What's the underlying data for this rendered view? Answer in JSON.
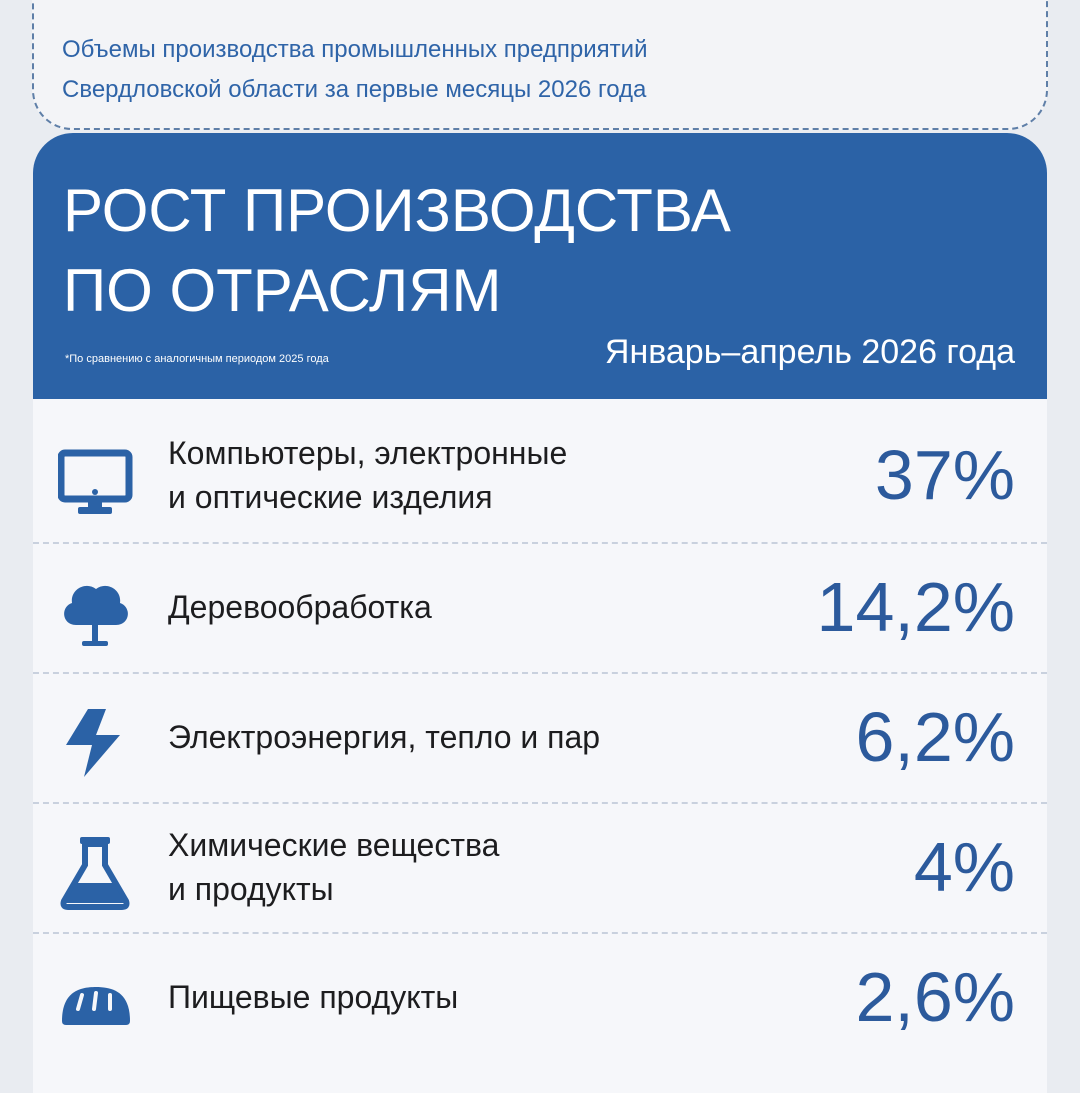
{
  "header": {
    "caption": [
      "Объемы производства промышленных предприятий",
      "Свердловской области за первые месяцы 2026 года"
    ]
  },
  "card": {
    "title": [
      "РОСТ ПРОИЗВОДСТВА",
      "ПО ОТРАСЛЯМ"
    ],
    "footnote": "*По сравнению с аналогичным периодом 2025 года",
    "period": "Январь–апрель 2026 года",
    "items": [
      {
        "label": [
          "Компьютеры, электронные",
          "и оптические изделия"
        ],
        "value": "37%"
      },
      {
        "label": [
          "Деревообработка"
        ],
        "value": "14,2%"
      },
      {
        "label": [
          "Электроэнергия, тепло и пар"
        ],
        "value": "6,2%"
      },
      {
        "label": [
          "Химические вещества",
          "и продукты"
        ],
        "value": "4%"
      },
      {
        "label": [
          "Пищевые продукты"
        ],
        "value": "2,6%"
      }
    ]
  }
}
